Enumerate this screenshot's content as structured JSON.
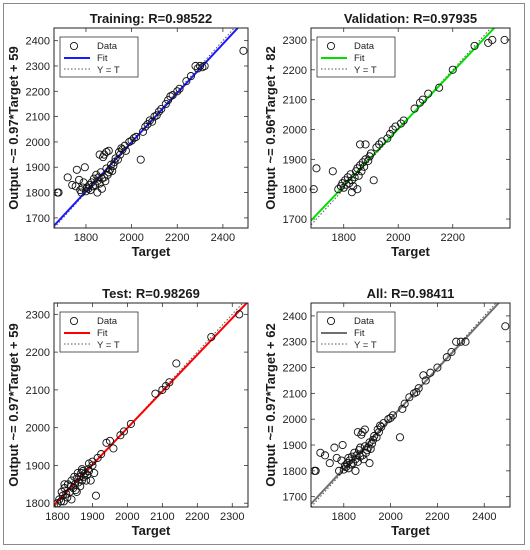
{
  "legend": {
    "data": "Data",
    "fit": "Fit",
    "yt": "Y = T"
  },
  "chart_data": [
    {
      "type": "scatter",
      "title": "Training: R=0.98522",
      "xlabel": "Target",
      "ylabel": "Output ~= 0.97*Target + 59",
      "xlim": [
        1660,
        2510
      ],
      "ylim": [
        1660,
        2450
      ],
      "xticks": [
        1800,
        2000,
        2200,
        2400
      ],
      "yticks": [
        1700,
        1800,
        1900,
        2000,
        2100,
        2200,
        2300,
        2400
      ],
      "fit": {
        "slope": 0.97,
        "intercept": 59
      },
      "fit_color": "#1a1aff",
      "points": [
        [
          1675,
          1800
        ],
        [
          1680,
          1800
        ],
        [
          1720,
          1860
        ],
        [
          1740,
          1830
        ],
        [
          1755,
          1825
        ],
        [
          1760,
          1890
        ],
        [
          1770,
          1850
        ],
        [
          1775,
          1810
        ],
        [
          1780,
          1800
        ],
        [
          1785,
          1820
        ],
        [
          1790,
          1840
        ],
        [
          1795,
          1900
        ],
        [
          1800,
          1805
        ],
        [
          1805,
          1820
        ],
        [
          1810,
          1815
        ],
        [
          1815,
          1830
        ],
        [
          1820,
          1810
        ],
        [
          1825,
          1840
        ],
        [
          1830,
          1825
        ],
        [
          1835,
          1855
        ],
        [
          1840,
          1830
        ],
        [
          1845,
          1870
        ],
        [
          1850,
          1845
        ],
        [
          1855,
          1860
        ],
        [
          1860,
          1835
        ],
        [
          1865,
          1880
        ],
        [
          1870,
          1855
        ],
        [
          1875,
          1940
        ],
        [
          1880,
          1860
        ],
        [
          1885,
          1845
        ],
        [
          1890,
          1895
        ],
        [
          1895,
          1870
        ],
        [
          1900,
          1880
        ],
        [
          1905,
          1890
        ],
        [
          1910,
          1910
        ],
        [
          1915,
          1885
        ],
        [
          1920,
          1905
        ],
        [
          1925,
          1920
        ],
        [
          1930,
          1935
        ],
        [
          1940,
          1930
        ],
        [
          1945,
          1960
        ],
        [
          1950,
          1950
        ],
        [
          1955,
          1975
        ],
        [
          1960,
          1970
        ],
        [
          1970,
          1985
        ],
        [
          1975,
          1965
        ],
        [
          1990,
          2000
        ],
        [
          2000,
          2005
        ],
        [
          2010,
          2015
        ],
        [
          2020,
          2020
        ],
        [
          2040,
          1930
        ],
        [
          2050,
          2040
        ],
        [
          2060,
          2060
        ],
        [
          2070,
          2070
        ],
        [
          2080,
          2085
        ],
        [
          2090,
          2080
        ],
        [
          2100,
          2100
        ],
        [
          2110,
          2105
        ],
        [
          2120,
          2120
        ],
        [
          2130,
          2130
        ],
        [
          2150,
          2150
        ],
        [
          2160,
          2165
        ],
        [
          2170,
          2180
        ],
        [
          2180,
          2185
        ],
        [
          2200,
          2200
        ],
        [
          2210,
          2210
        ],
        [
          2240,
          2240
        ],
        [
          2260,
          2260
        ],
        [
          2280,
          2300
        ],
        [
          2290,
          2290
        ],
        [
          2300,
          2300
        ],
        [
          2310,
          2295
        ],
        [
          2320,
          2300
        ],
        [
          2490,
          2360
        ],
        [
          1890,
          1960
        ],
        [
          1880,
          1950
        ],
        [
          1860,
          1950
        ],
        [
          1900,
          1965
        ],
        [
          1850,
          1800
        ],
        [
          1870,
          1815
        ]
      ]
    },
    {
      "type": "scatter",
      "title": "Validation: R=0.97935",
      "xlabel": "Target",
      "ylabel": "Output ~= 0.96*Target + 82",
      "xlim": [
        1680,
        2410
      ],
      "ylim": [
        1670,
        2340
      ],
      "xticks": [
        1800,
        2000,
        2200
      ],
      "yticks": [
        1700,
        1800,
        1900,
        2000,
        2100,
        2200,
        2300
      ],
      "fit": {
        "slope": 0.96,
        "intercept": 82
      },
      "fit_color": "#00e000",
      "points": [
        [
          1690,
          1800
        ],
        [
          1700,
          1870
        ],
        [
          1760,
          1860
        ],
        [
          1780,
          1800
        ],
        [
          1790,
          1810
        ],
        [
          1795,
          1820
        ],
        [
          1800,
          1805
        ],
        [
          1805,
          1830
        ],
        [
          1810,
          1815
        ],
        [
          1815,
          1840
        ],
        [
          1820,
          1820
        ],
        [
          1825,
          1850
        ],
        [
          1830,
          1830
        ],
        [
          1835,
          1810
        ],
        [
          1840,
          1840
        ],
        [
          1845,
          1860
        ],
        [
          1850,
          1870
        ],
        [
          1855,
          1845
        ],
        [
          1860,
          1880
        ],
        [
          1865,
          1860
        ],
        [
          1870,
          1890
        ],
        [
          1875,
          1875
        ],
        [
          1880,
          1900
        ],
        [
          1890,
          1895
        ],
        [
          1895,
          1910
        ],
        [
          1900,
          1920
        ],
        [
          1910,
          1830
        ],
        [
          1920,
          1940
        ],
        [
          1930,
          1950
        ],
        [
          1940,
          1960
        ],
        [
          1960,
          1970
        ],
        [
          1970,
          1985
        ],
        [
          1980,
          2000
        ],
        [
          1990,
          2010
        ],
        [
          2010,
          2020
        ],
        [
          2020,
          2030
        ],
        [
          2060,
          2070
        ],
        [
          2080,
          2090
        ],
        [
          2090,
          2100
        ],
        [
          2110,
          2120
        ],
        [
          2150,
          2140
        ],
        [
          2200,
          2200
        ],
        [
          2280,
          2280
        ],
        [
          2330,
          2290
        ],
        [
          2345,
          2300
        ],
        [
          2390,
          2300
        ],
        [
          1850,
          1800
        ],
        [
          1830,
          1790
        ],
        [
          1860,
          1950
        ],
        [
          1880,
          1950
        ]
      ]
    },
    {
      "type": "scatter",
      "title": "Test: R=0.98269",
      "xlabel": "Target",
      "ylabel": "Output ~= 0.97*Target + 59",
      "xlim": [
        1790,
        2345
      ],
      "ylim": [
        1790,
        2330
      ],
      "xticks": [
        1800,
        1900,
        2000,
        2100,
        2200,
        2300
      ],
      "yticks": [
        1800,
        1900,
        2000,
        2100,
        2200,
        2300
      ],
      "fit": {
        "slope": 0.97,
        "intercept": 59
      },
      "fit_color": "#ff0000",
      "points": [
        [
          1800,
          1800
        ],
        [
          1805,
          1810
        ],
        [
          1810,
          1805
        ],
        [
          1812,
          1830
        ],
        [
          1815,
          1820
        ],
        [
          1818,
          1805
        ],
        [
          1820,
          1840
        ],
        [
          1825,
          1825
        ],
        [
          1828,
          1815
        ],
        [
          1830,
          1850
        ],
        [
          1835,
          1830
        ],
        [
          1838,
          1845
        ],
        [
          1840,
          1860
        ],
        [
          1845,
          1840
        ],
        [
          1848,
          1870
        ],
        [
          1850,
          1850
        ],
        [
          1852,
          1835
        ],
        [
          1855,
          1865
        ],
        [
          1858,
          1880
        ],
        [
          1860,
          1855
        ],
        [
          1862,
          1870
        ],
        [
          1865,
          1845
        ],
        [
          1868,
          1880
        ],
        [
          1870,
          1860
        ],
        [
          1872,
          1885
        ],
        [
          1875,
          1870
        ],
        [
          1880,
          1880
        ],
        [
          1882,
          1860
        ],
        [
          1885,
          1875
        ],
        [
          1888,
          1890
        ],
        [
          1890,
          1885
        ],
        [
          1895,
          1860
        ],
        [
          1900,
          1900
        ],
        [
          1905,
          1880
        ],
        [
          1910,
          1820
        ],
        [
          1915,
          1920
        ],
        [
          1925,
          1930
        ],
        [
          1940,
          1960
        ],
        [
          1950,
          1965
        ],
        [
          1960,
          1945
        ],
        [
          1980,
          1980
        ],
        [
          1990,
          1990
        ],
        [
          2010,
          2010
        ],
        [
          2080,
          2090
        ],
        [
          2100,
          2100
        ],
        [
          2110,
          2110
        ],
        [
          2120,
          2120
        ],
        [
          2140,
          2170
        ],
        [
          2240,
          2240
        ],
        [
          2320,
          2300
        ],
        [
          1820,
          1850
        ],
        [
          1870,
          1890
        ],
        [
          1890,
          1905
        ],
        [
          1900,
          1910
        ],
        [
          1840,
          1810
        ],
        [
          1855,
          1830
        ]
      ]
    },
    {
      "type": "scatter",
      "title": "All: R=0.98411",
      "xlabel": "Target",
      "ylabel": "Output ~= 0.97*Target + 62",
      "xlim": [
        1660,
        2510
      ],
      "ylim": [
        1660,
        2450
      ],
      "xticks": [
        1800,
        2000,
        2200,
        2400
      ],
      "yticks": [
        1700,
        1800,
        1900,
        2000,
        2100,
        2200,
        2300,
        2400
      ],
      "fit": {
        "slope": 0.97,
        "intercept": 62
      },
      "fit_color": "#707070",
      "points": [
        [
          1675,
          1800
        ],
        [
          1680,
          1800
        ],
        [
          1700,
          1870
        ],
        [
          1720,
          1860
        ],
        [
          1740,
          1830
        ],
        [
          1760,
          1890
        ],
        [
          1770,
          1850
        ],
        [
          1780,
          1800
        ],
        [
          1790,
          1840
        ],
        [
          1795,
          1900
        ],
        [
          1800,
          1805
        ],
        [
          1805,
          1820
        ],
        [
          1810,
          1815
        ],
        [
          1815,
          1830
        ],
        [
          1820,
          1810
        ],
        [
          1825,
          1840
        ],
        [
          1830,
          1825
        ],
        [
          1835,
          1855
        ],
        [
          1840,
          1830
        ],
        [
          1845,
          1870
        ],
        [
          1850,
          1845
        ],
        [
          1855,
          1860
        ],
        [
          1860,
          1835
        ],
        [
          1865,
          1880
        ],
        [
          1870,
          1855
        ],
        [
          1875,
          1940
        ],
        [
          1880,
          1860
        ],
        [
          1885,
          1845
        ],
        [
          1890,
          1895
        ],
        [
          1895,
          1870
        ],
        [
          1900,
          1880
        ],
        [
          1905,
          1890
        ],
        [
          1910,
          1910
        ],
        [
          1915,
          1885
        ],
        [
          1920,
          1905
        ],
        [
          1925,
          1920
        ],
        [
          1930,
          1935
        ],
        [
          1940,
          1930
        ],
        [
          1945,
          1960
        ],
        [
          1950,
          1950
        ],
        [
          1955,
          1975
        ],
        [
          1960,
          1970
        ],
        [
          1970,
          1985
        ],
        [
          1990,
          2000
        ],
        [
          2000,
          2005
        ],
        [
          2010,
          2015
        ],
        [
          2040,
          1930
        ],
        [
          2050,
          2040
        ],
        [
          2060,
          2060
        ],
        [
          2080,
          2085
        ],
        [
          2100,
          2100
        ],
        [
          2110,
          2105
        ],
        [
          2120,
          2120
        ],
        [
          2140,
          2170
        ],
        [
          2150,
          2150
        ],
        [
          2170,
          2180
        ],
        [
          2200,
          2200
        ],
        [
          2240,
          2240
        ],
        [
          2260,
          2260
        ],
        [
          2280,
          2300
        ],
        [
          2300,
          2300
        ],
        [
          2320,
          2300
        ],
        [
          2490,
          2360
        ],
        [
          1890,
          1960
        ],
        [
          1880,
          1950
        ],
        [
          1860,
          1950
        ],
        [
          1850,
          1800
        ],
        [
          1820,
          1850
        ],
        [
          1870,
          1890
        ],
        [
          1910,
          1830
        ]
      ]
    }
  ]
}
